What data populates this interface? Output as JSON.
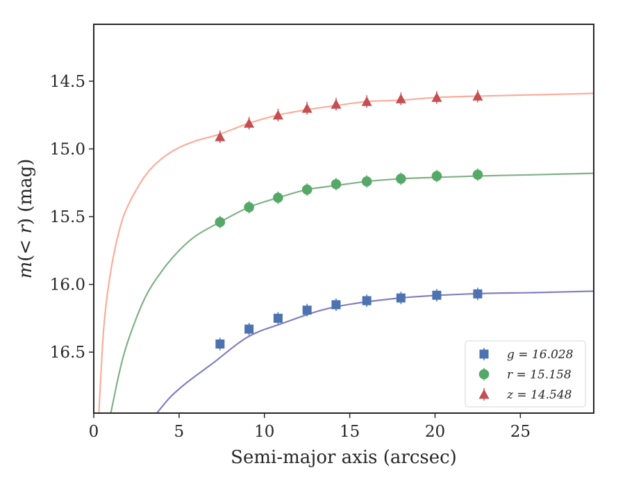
{
  "chart_data": {
    "type": "scatter",
    "title": "",
    "xlabel": "Semi-major axis (arcsec)",
    "ylabel": "m(< r) (mag)",
    "xlim": [
      0,
      29.3
    ],
    "ylim": [
      16.95,
      14.08
    ],
    "y_inverted": true,
    "xticks": [
      0,
      5,
      10,
      15,
      20,
      25
    ],
    "xtick_labels": [
      "0",
      "5",
      "10",
      "15",
      "20",
      "25"
    ],
    "yticks": [
      14.5,
      15.0,
      15.5,
      16.0,
      16.5
    ],
    "ytick_labels": [
      "14.5",
      "15.0",
      "15.5",
      "16.0",
      "16.5"
    ],
    "grid": false,
    "legend_position": "lower-right",
    "series": [
      {
        "name": "g = 16.028",
        "marker": "square",
        "color": "#4c72b0",
        "curve_color": "#7f7fbf",
        "x": [
          7.4,
          9.1,
          10.8,
          12.5,
          14.2,
          16.0,
          18.0,
          20.1,
          22.5
        ],
        "y": [
          16.44,
          16.33,
          16.25,
          16.19,
          16.15,
          16.12,
          16.1,
          16.08,
          16.07
        ],
        "fit_x": [
          3.7,
          4.5,
          5.5,
          7.0,
          9.0,
          11.0,
          14.0,
          18.0,
          22.0,
          26.0,
          29.3
        ],
        "fit_y": [
          16.95,
          16.83,
          16.72,
          16.58,
          16.39,
          16.29,
          16.17,
          16.1,
          16.07,
          16.06,
          16.05
        ]
      },
      {
        "name": "r = 15.158",
        "marker": "circle",
        "color": "#55a868",
        "curve_color": "#82b086",
        "x": [
          7.4,
          9.1,
          10.8,
          12.5,
          14.2,
          16.0,
          18.0,
          20.1,
          22.5
        ],
        "y": [
          15.54,
          15.43,
          15.36,
          15.3,
          15.26,
          15.24,
          15.22,
          15.2,
          15.19
        ],
        "fit_x": [
          1.0,
          1.5,
          2.0,
          3.0,
          4.0,
          5.0,
          6.0,
          7.4,
          9.1,
          10.8,
          12.5,
          14.2,
          16.0,
          18.0,
          20.1,
          22.5,
          26.0,
          29.3
        ],
        "fit_y": [
          16.95,
          16.65,
          16.42,
          16.1,
          15.9,
          15.75,
          15.64,
          15.54,
          15.43,
          15.36,
          15.3,
          15.27,
          15.24,
          15.22,
          15.21,
          15.2,
          15.19,
          15.18
        ]
      },
      {
        "name": "z = 14.548",
        "marker": "triangle",
        "color": "#c44e52",
        "curve_color": "#fbac9b",
        "x": [
          7.4,
          9.1,
          10.8,
          12.5,
          14.2,
          16.0,
          18.0,
          20.1,
          22.5
        ],
        "y": [
          14.91,
          14.81,
          14.75,
          14.7,
          14.67,
          14.65,
          14.63,
          14.62,
          14.61
        ],
        "fit_x": [
          0.3,
          0.6,
          1.0,
          1.5,
          2.0,
          3.0,
          4.0,
          5.0,
          6.0,
          7.4,
          9.1,
          10.8,
          12.5,
          14.2,
          16.0,
          18.0,
          20.1,
          22.5,
          26.0,
          29.3
        ],
        "fit_y": [
          16.95,
          16.3,
          15.9,
          15.6,
          15.42,
          15.2,
          15.07,
          14.99,
          14.94,
          14.89,
          14.81,
          14.75,
          14.71,
          14.68,
          14.65,
          14.64,
          14.62,
          14.61,
          14.6,
          14.59
        ]
      }
    ],
    "legend_entries": [
      {
        "symbol": "g",
        "value": "16.028",
        "label": "g = 16.028"
      },
      {
        "symbol": "r",
        "value": "15.158",
        "label": "r = 15.158"
      },
      {
        "symbol": "z",
        "value": "14.548",
        "label": "z = 14.548"
      }
    ]
  }
}
